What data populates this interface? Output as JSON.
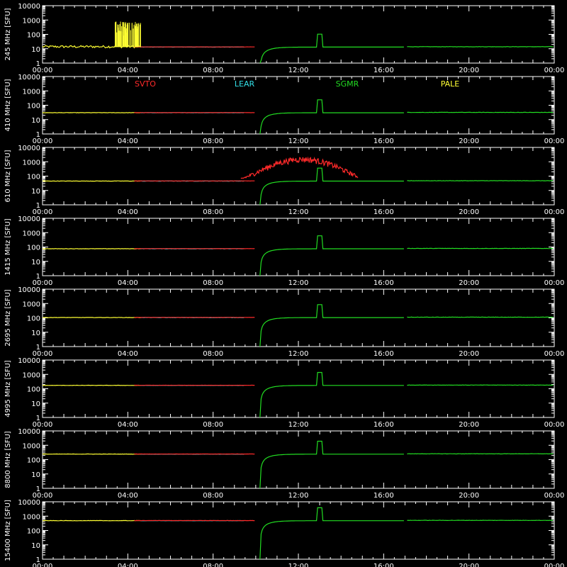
{
  "chart_data": {
    "type": "line",
    "x_ticks": [
      "00:00",
      "04:00",
      "08:00",
      "12:00",
      "16:00",
      "20:00",
      "00:00"
    ],
    "y_ticks": [
      "10000",
      "1000",
      "100",
      "10",
      "1"
    ],
    "y_scale": "log",
    "ylim": [
      1,
      10000
    ],
    "xlim_hours": [
      0,
      24
    ],
    "legend": [
      {
        "name": "SVTO",
        "color": "#ff2a2a"
      },
      {
        "name": "LEAR",
        "color": "#33e0e8"
      },
      {
        "name": "SGMR",
        "color": "#22dd22"
      },
      {
        "name": "PALE",
        "color": "#ffff33"
      }
    ],
    "panels": [
      {
        "ylabel": "245 MHz [SFU]",
        "baseline": 13
      },
      {
        "ylabel": "410 MHz [SFU]",
        "baseline": 30
      },
      {
        "ylabel": "610 MHz [SFU]",
        "baseline": 45
      },
      {
        "ylabel": "1415 MHz [SFU]",
        "baseline": 75
      },
      {
        "ylabel": "2695 MHz [SFU]",
        "baseline": 105
      },
      {
        "ylabel": "4995 MHz [SFU]",
        "baseline": 170
      },
      {
        "ylabel": "8800 MHz [SFU]",
        "baseline": 240
      },
      {
        "ylabel": "15400 MHz [SFU]",
        "baseline": 480
      }
    ]
  }
}
